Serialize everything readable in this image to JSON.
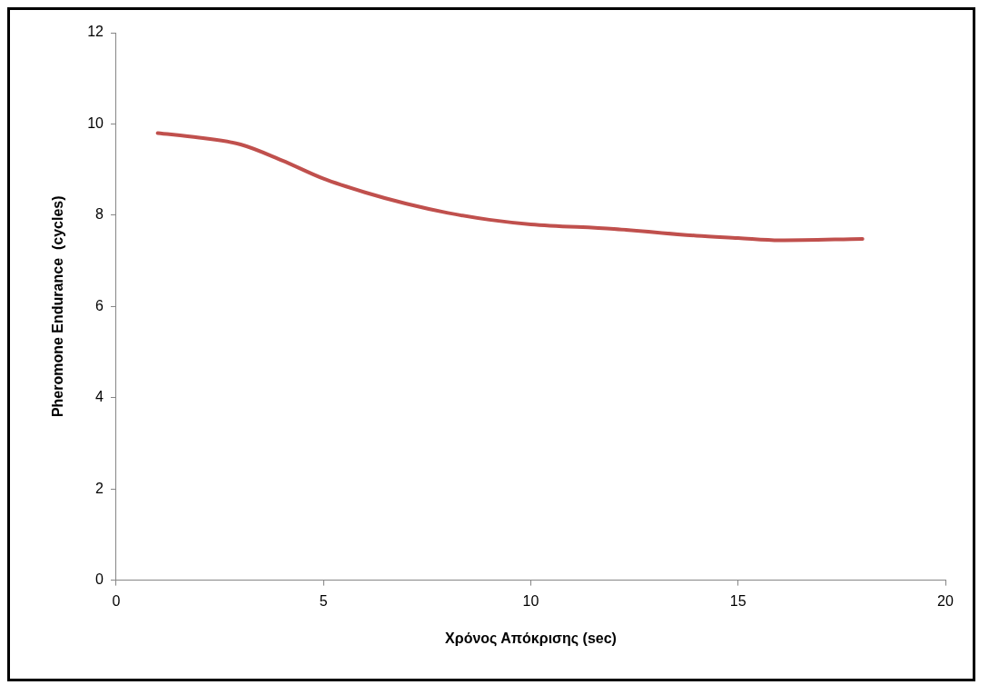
{
  "chart_data": {
    "type": "line",
    "xlabel": "Χρόνος Απόκρισης (sec)",
    "ylabel": "Pheromone Endurance  (cycles)",
    "series": [
      {
        "color": "#c0504d",
        "x": [
          1,
          2,
          3,
          4,
          5,
          6,
          7,
          8,
          9,
          10,
          12,
          14,
          15,
          16,
          18
        ],
        "values": [
          9.8,
          9.7,
          9.55,
          9.2,
          8.8,
          8.5,
          8.25,
          8.05,
          7.9,
          7.8,
          7.7,
          7.55,
          7.5,
          7.45,
          7.48
        ]
      }
    ],
    "xlim": [
      0,
      20
    ],
    "xticks": [
      0,
      5,
      10,
      15,
      20
    ],
    "ylim": [
      0,
      12
    ],
    "yticks": [
      0,
      2,
      4,
      6,
      8,
      10,
      12
    ],
    "grid": false,
    "legend": false,
    "marker": "none",
    "line_style": "solid"
  }
}
